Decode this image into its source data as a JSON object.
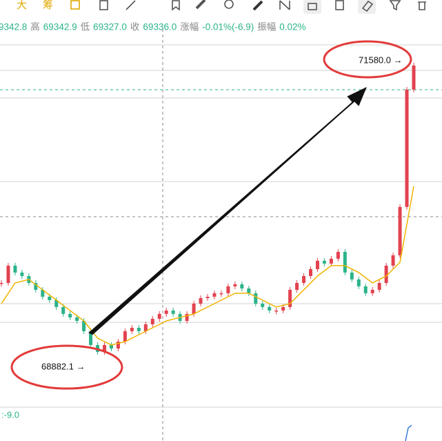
{
  "toolbar": {
    "items": [
      "大",
      "筹"
    ]
  },
  "quote_line": [
    {
      "text": "9342.8",
      "kind": "num"
    },
    {
      "text": "高",
      "kind": "label"
    },
    {
      "text": "69342.9",
      "kind": "num"
    },
    {
      "text": "低",
      "kind": "label"
    },
    {
      "text": "69327.0",
      "kind": "num"
    },
    {
      "text": "收",
      "kind": "label"
    },
    {
      "text": "69336.0",
      "kind": "num"
    },
    {
      "text": "涨幅",
      "kind": "label"
    },
    {
      "text": "-0.01%(-6.9)",
      "kind": "num"
    },
    {
      "text": "振幅",
      "kind": "label"
    },
    {
      "text": "0.02%",
      "kind": "num"
    }
  ],
  "chart_data": {
    "type": "candlestick",
    "ylim": [
      68515,
      71842
    ],
    "series": [
      {
        "name": "price",
        "up_color": "#e2424f",
        "down_color": "#2bb38a",
        "values": [
          69614,
          69767,
          69706,
          69675,
          69614,
          69553,
          69492,
          69462,
          69401,
          69340,
          69309,
          69278,
          69187,
          69065,
          69004,
          69065,
          69034,
          69095,
          69187,
          69217,
          69187,
          69248,
          69297,
          69340,
          69370,
          69340,
          69278,
          69340,
          69431,
          69480,
          69492,
          69523,
          69523,
          69584,
          69602,
          69565,
          69523,
          69431,
          69401,
          69370,
          69370,
          69401,
          69553,
          69614,
          69675,
          69736,
          69810,
          69785,
          69828,
          69889,
          69706,
          69645,
          69584,
          69523,
          69553,
          69614,
          69767,
          69858,
          70286,
          71324,
          71537
        ]
      },
      {
        "name": "ma",
        "color": "#f0b400",
        "values": [
          69431,
          69614,
          69645,
          69553,
          69462,
          69370,
          69278,
          69126,
          69065,
          69095,
          69156,
          69217,
          69278,
          69309,
          69340,
          69401,
          69462,
          69523,
          69523,
          69462,
          69401,
          69431,
          69553,
          69675,
          69767,
          69767,
          69706,
          69614,
          69675,
          69797,
          70469
        ]
      }
    ],
    "markers": [
      {
        "value": 71580.0,
        "label": "71580.0 →"
      },
      {
        "value": 68882.1,
        "label": "68882.1 →"
      }
    ],
    "indicator_label": ":-9.0"
  }
}
